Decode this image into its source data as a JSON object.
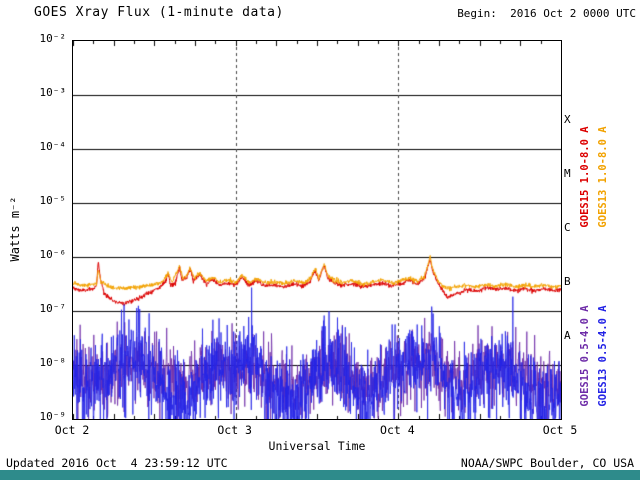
{
  "header": {
    "title": "GOES Xray Flux (1-minute data)",
    "begin_label": "Begin:  2016 Oct 2 0000 UTC"
  },
  "footer": {
    "updated": "Updated 2016 Oct  4 23:59:12 UTC",
    "source": "NOAA/SWPC Boulder, CO USA",
    "bar_color": "#2e8b8b"
  },
  "chart_data": {
    "type": "line",
    "title": "GOES Xray Flux (1-minute data)",
    "x_axis": {
      "label": "Universal Time",
      "range_days": [
        0,
        3
      ],
      "tick_labels": [
        "Oct 2",
        "Oct 3",
        "Oct 4",
        "Oct 5"
      ],
      "tick_positions_days": [
        0,
        1,
        2,
        3
      ],
      "dashed_gridlines_days": [
        1,
        2
      ]
    },
    "y_axis": {
      "label": "Watts m⁻²",
      "scale": "log",
      "range": [
        1e-09,
        0.01
      ],
      "tick_labels": [
        "10⁻²",
        "10⁻³",
        "10⁻⁴",
        "10⁻⁵",
        "10⁻⁶",
        "10⁻⁷",
        "10⁻⁸",
        "10⁻⁹"
      ],
      "tick_exponents": [
        -2,
        -3,
        -4,
        -5,
        -6,
        -7,
        -8,
        -9
      ],
      "grid": "solid horizontal line at each decade"
    },
    "flare_classes": [
      {
        "letter": "X",
        "band": [
          -4,
          -3
        ]
      },
      {
        "letter": "M",
        "band": [
          -5,
          -4
        ]
      },
      {
        "letter": "C",
        "band": [
          -6,
          -5
        ]
      },
      {
        "letter": "B",
        "band": [
          -7,
          -6
        ]
      },
      {
        "letter": "A",
        "band": [
          -8,
          -7
        ]
      }
    ],
    "axis_right_labels": [
      {
        "text": "GOES15 1.0-8.0 A",
        "color": "#dc0000",
        "col": 0,
        "row": 0
      },
      {
        "text": "GOES13 1.0-8.0 A",
        "color": "#f2a200",
        "col": 1,
        "row": 0
      },
      {
        "text": "GOES15 0.5-4.0 A",
        "color": "#6e2ca8",
        "col": 0,
        "row": 1
      },
      {
        "text": "GOES13 0.5-4.0 A",
        "color": "#2323e6",
        "col": 1,
        "row": 1
      }
    ],
    "series": [
      {
        "name": "GOES15 1.0-8.0 A",
        "color": "#dc0000",
        "jitter_log": 0.02,
        "width": 1,
        "points": [
          [
            0.0,
            2.6e-07
          ],
          [
            0.06,
            2.4e-07
          ],
          [
            0.12,
            2.5e-07
          ],
          [
            0.145,
            3e-07
          ],
          [
            0.155,
            8.5e-07
          ],
          [
            0.165,
            4.5e-07
          ],
          [
            0.19,
            2.2e-07
          ],
          [
            0.25,
            1.5e-07
          ],
          [
            0.32,
            1.4e-07
          ],
          [
            0.4,
            1.7e-07
          ],
          [
            0.47,
            2.2e-07
          ],
          [
            0.52,
            2.6e-07
          ],
          [
            0.56,
            3.2e-07
          ],
          [
            0.585,
            4.8e-07
          ],
          [
            0.6,
            3e-07
          ],
          [
            0.63,
            3.4e-07
          ],
          [
            0.655,
            6.5e-07
          ],
          [
            0.67,
            3.6e-07
          ],
          [
            0.7,
            4.2e-07
          ],
          [
            0.72,
            6e-07
          ],
          [
            0.74,
            3.6e-07
          ],
          [
            0.78,
            4.6e-07
          ],
          [
            0.82,
            3.2e-07
          ],
          [
            0.86,
            3.8e-07
          ],
          [
            0.9,
            3e-07
          ],
          [
            0.95,
            3.3e-07
          ],
          [
            1.0,
            3e-07
          ],
          [
            1.04,
            4.2e-07
          ],
          [
            1.08,
            3e-07
          ],
          [
            1.13,
            3.6e-07
          ],
          [
            1.18,
            2.9e-07
          ],
          [
            1.24,
            3.1e-07
          ],
          [
            1.3,
            2.8e-07
          ],
          [
            1.36,
            3.2e-07
          ],
          [
            1.42,
            2.9e-07
          ],
          [
            1.46,
            3.6e-07
          ],
          [
            1.49,
            5.8e-07
          ],
          [
            1.51,
            3.6e-07
          ],
          [
            1.545,
            7e-07
          ],
          [
            1.565,
            4.2e-07
          ],
          [
            1.6,
            3.4e-07
          ],
          [
            1.66,
            3e-07
          ],
          [
            1.72,
            3.2e-07
          ],
          [
            1.78,
            2.8e-07
          ],
          [
            1.84,
            3e-07
          ],
          [
            1.9,
            3.3e-07
          ],
          [
            1.96,
            2.9e-07
          ],
          [
            2.02,
            3.2e-07
          ],
          [
            2.07,
            3.8e-07
          ],
          [
            2.12,
            3.1e-07
          ],
          [
            2.16,
            4e-07
          ],
          [
            2.195,
            9e-07
          ],
          [
            2.215,
            5e-07
          ],
          [
            2.25,
            3e-07
          ],
          [
            2.3,
            1.8e-07
          ],
          [
            2.36,
            2.1e-07
          ],
          [
            2.42,
            2.5e-07
          ],
          [
            2.48,
            2.3e-07
          ],
          [
            2.54,
            2.7e-07
          ],
          [
            2.6,
            2.5e-07
          ],
          [
            2.66,
            2.7e-07
          ],
          [
            2.72,
            2.4e-07
          ],
          [
            2.78,
            2.6e-07
          ],
          [
            2.84,
            2.4e-07
          ],
          [
            2.9,
            2.6e-07
          ],
          [
            2.95,
            2.4e-07
          ],
          [
            3.0,
            2.5e-07
          ]
        ]
      },
      {
        "name": "GOES13 1.0-8.0 A",
        "color": "#f2a200",
        "jitter_log": 0.02,
        "width": 1,
        "points": [
          [
            0.0,
            3.2e-07
          ],
          [
            0.08,
            3e-07
          ],
          [
            0.145,
            3.2e-07
          ],
          [
            0.155,
            6e-07
          ],
          [
            0.17,
            3.6e-07
          ],
          [
            0.22,
            2.8e-07
          ],
          [
            0.3,
            2.6e-07
          ],
          [
            0.4,
            2.8e-07
          ],
          [
            0.5,
            3.1e-07
          ],
          [
            0.56,
            3.6e-07
          ],
          [
            0.585,
            5.2e-07
          ],
          [
            0.61,
            3.4e-07
          ],
          [
            0.655,
            7e-07
          ],
          [
            0.675,
            4e-07
          ],
          [
            0.7,
            4.6e-07
          ],
          [
            0.72,
            6.4e-07
          ],
          [
            0.745,
            4e-07
          ],
          [
            0.78,
            5e-07
          ],
          [
            0.82,
            3.6e-07
          ],
          [
            0.86,
            4.2e-07
          ],
          [
            0.9,
            3.4e-07
          ],
          [
            0.95,
            3.7e-07
          ],
          [
            1.0,
            3.4e-07
          ],
          [
            1.04,
            4.6e-07
          ],
          [
            1.08,
            3.4e-07
          ],
          [
            1.13,
            4e-07
          ],
          [
            1.18,
            3.3e-07
          ],
          [
            1.24,
            3.5e-07
          ],
          [
            1.3,
            3.2e-07
          ],
          [
            1.36,
            3.6e-07
          ],
          [
            1.42,
            3.3e-07
          ],
          [
            1.46,
            4e-07
          ],
          [
            1.49,
            6.2e-07
          ],
          [
            1.51,
            4e-07
          ],
          [
            1.545,
            7.6e-07
          ],
          [
            1.565,
            4.6e-07
          ],
          [
            1.6,
            3.8e-07
          ],
          [
            1.66,
            3.4e-07
          ],
          [
            1.72,
            3.6e-07
          ],
          [
            1.78,
            3.2e-07
          ],
          [
            1.84,
            3.4e-07
          ],
          [
            1.9,
            3.7e-07
          ],
          [
            1.96,
            3.3e-07
          ],
          [
            2.02,
            3.6e-07
          ],
          [
            2.07,
            4.2e-07
          ],
          [
            2.12,
            3.5e-07
          ],
          [
            2.16,
            4.4e-07
          ],
          [
            2.195,
            1e-06
          ],
          [
            2.215,
            5.6e-07
          ],
          [
            2.25,
            3.4e-07
          ],
          [
            2.3,
            2.6e-07
          ],
          [
            2.36,
            2.8e-07
          ],
          [
            2.42,
            3e-07
          ],
          [
            2.48,
            2.8e-07
          ],
          [
            2.54,
            3.1e-07
          ],
          [
            2.6,
            2.9e-07
          ],
          [
            2.66,
            3.1e-07
          ],
          [
            2.72,
            2.8e-07
          ],
          [
            2.78,
            3e-07
          ],
          [
            2.84,
            2.8e-07
          ],
          [
            2.9,
            3e-07
          ],
          [
            2.95,
            2.8e-07
          ],
          [
            3.0,
            2.9e-07
          ]
        ]
      },
      {
        "name": "GOES15 0.5-4.0 A",
        "color": "#6e2ca8",
        "jitter_log": 0.32,
        "width": 0.8,
        "points": [
          [
            0.0,
            8e-09
          ],
          [
            0.1,
            6e-09
          ],
          [
            0.2,
            5e-09
          ],
          [
            0.3,
            8e-09
          ],
          [
            0.4,
            1.1e-08
          ],
          [
            0.5,
            8e-09
          ],
          [
            0.6,
            5e-09
          ],
          [
            0.7,
            4e-09
          ],
          [
            0.8,
            7e-09
          ],
          [
            0.9,
            1e-08
          ],
          [
            1.0,
            7e-09
          ],
          [
            1.1,
            9e-09
          ],
          [
            1.2,
            5e-09
          ],
          [
            1.3,
            3e-09
          ],
          [
            1.4,
            4e-09
          ],
          [
            1.5,
            8e-09
          ],
          [
            1.6,
            1e-08
          ],
          [
            1.7,
            6e-09
          ],
          [
            1.8,
            4e-09
          ],
          [
            1.9,
            6e-09
          ],
          [
            2.0,
            8e-09
          ],
          [
            2.1,
            1.1e-08
          ],
          [
            2.2,
            1.2e-08
          ],
          [
            2.3,
            6e-09
          ],
          [
            2.4,
            5e-09
          ],
          [
            2.5,
            8e-09
          ],
          [
            2.6,
            1e-08
          ],
          [
            2.7,
            8e-09
          ],
          [
            2.8,
            5e-09
          ],
          [
            2.9,
            4e-09
          ],
          [
            3.0,
            5e-09
          ]
        ]
      },
      {
        "name": "GOES13 0.5-4.0 A",
        "color": "#2323e6",
        "jitter_log": 0.4,
        "width": 0.8,
        "points": [
          [
            0.0,
            5e-09
          ],
          [
            0.1,
            3e-09
          ],
          [
            0.2,
            7e-09
          ],
          [
            0.3,
            1.1e-08
          ],
          [
            0.4,
            1.4e-08
          ],
          [
            0.5,
            6e-09
          ],
          [
            0.6,
            2e-09
          ],
          [
            0.7,
            1.5e-09
          ],
          [
            0.8,
            6e-09
          ],
          [
            0.9,
            1.1e-08
          ],
          [
            1.0,
            8e-09
          ],
          [
            1.1,
            1.3e-08
          ],
          [
            1.2,
            4e-09
          ],
          [
            1.3,
            1.5e-09
          ],
          [
            1.4,
            2e-09
          ],
          [
            1.5,
            9e-09
          ],
          [
            1.6,
            1.2e-08
          ],
          [
            1.7,
            5e-09
          ],
          [
            1.8,
            2e-09
          ],
          [
            1.9,
            4e-09
          ],
          [
            2.0,
            9e-09
          ],
          [
            2.1,
            1.3e-08
          ],
          [
            2.2,
            1.5e-08
          ],
          [
            2.3,
            5e-09
          ],
          [
            2.4,
            2e-09
          ],
          [
            2.5,
            8e-09
          ],
          [
            2.6,
            1.1e-08
          ],
          [
            2.7,
            8e-09
          ],
          [
            2.8,
            3e-09
          ],
          [
            2.9,
            1.5e-09
          ],
          [
            3.0,
            3e-09
          ]
        ]
      }
    ]
  }
}
